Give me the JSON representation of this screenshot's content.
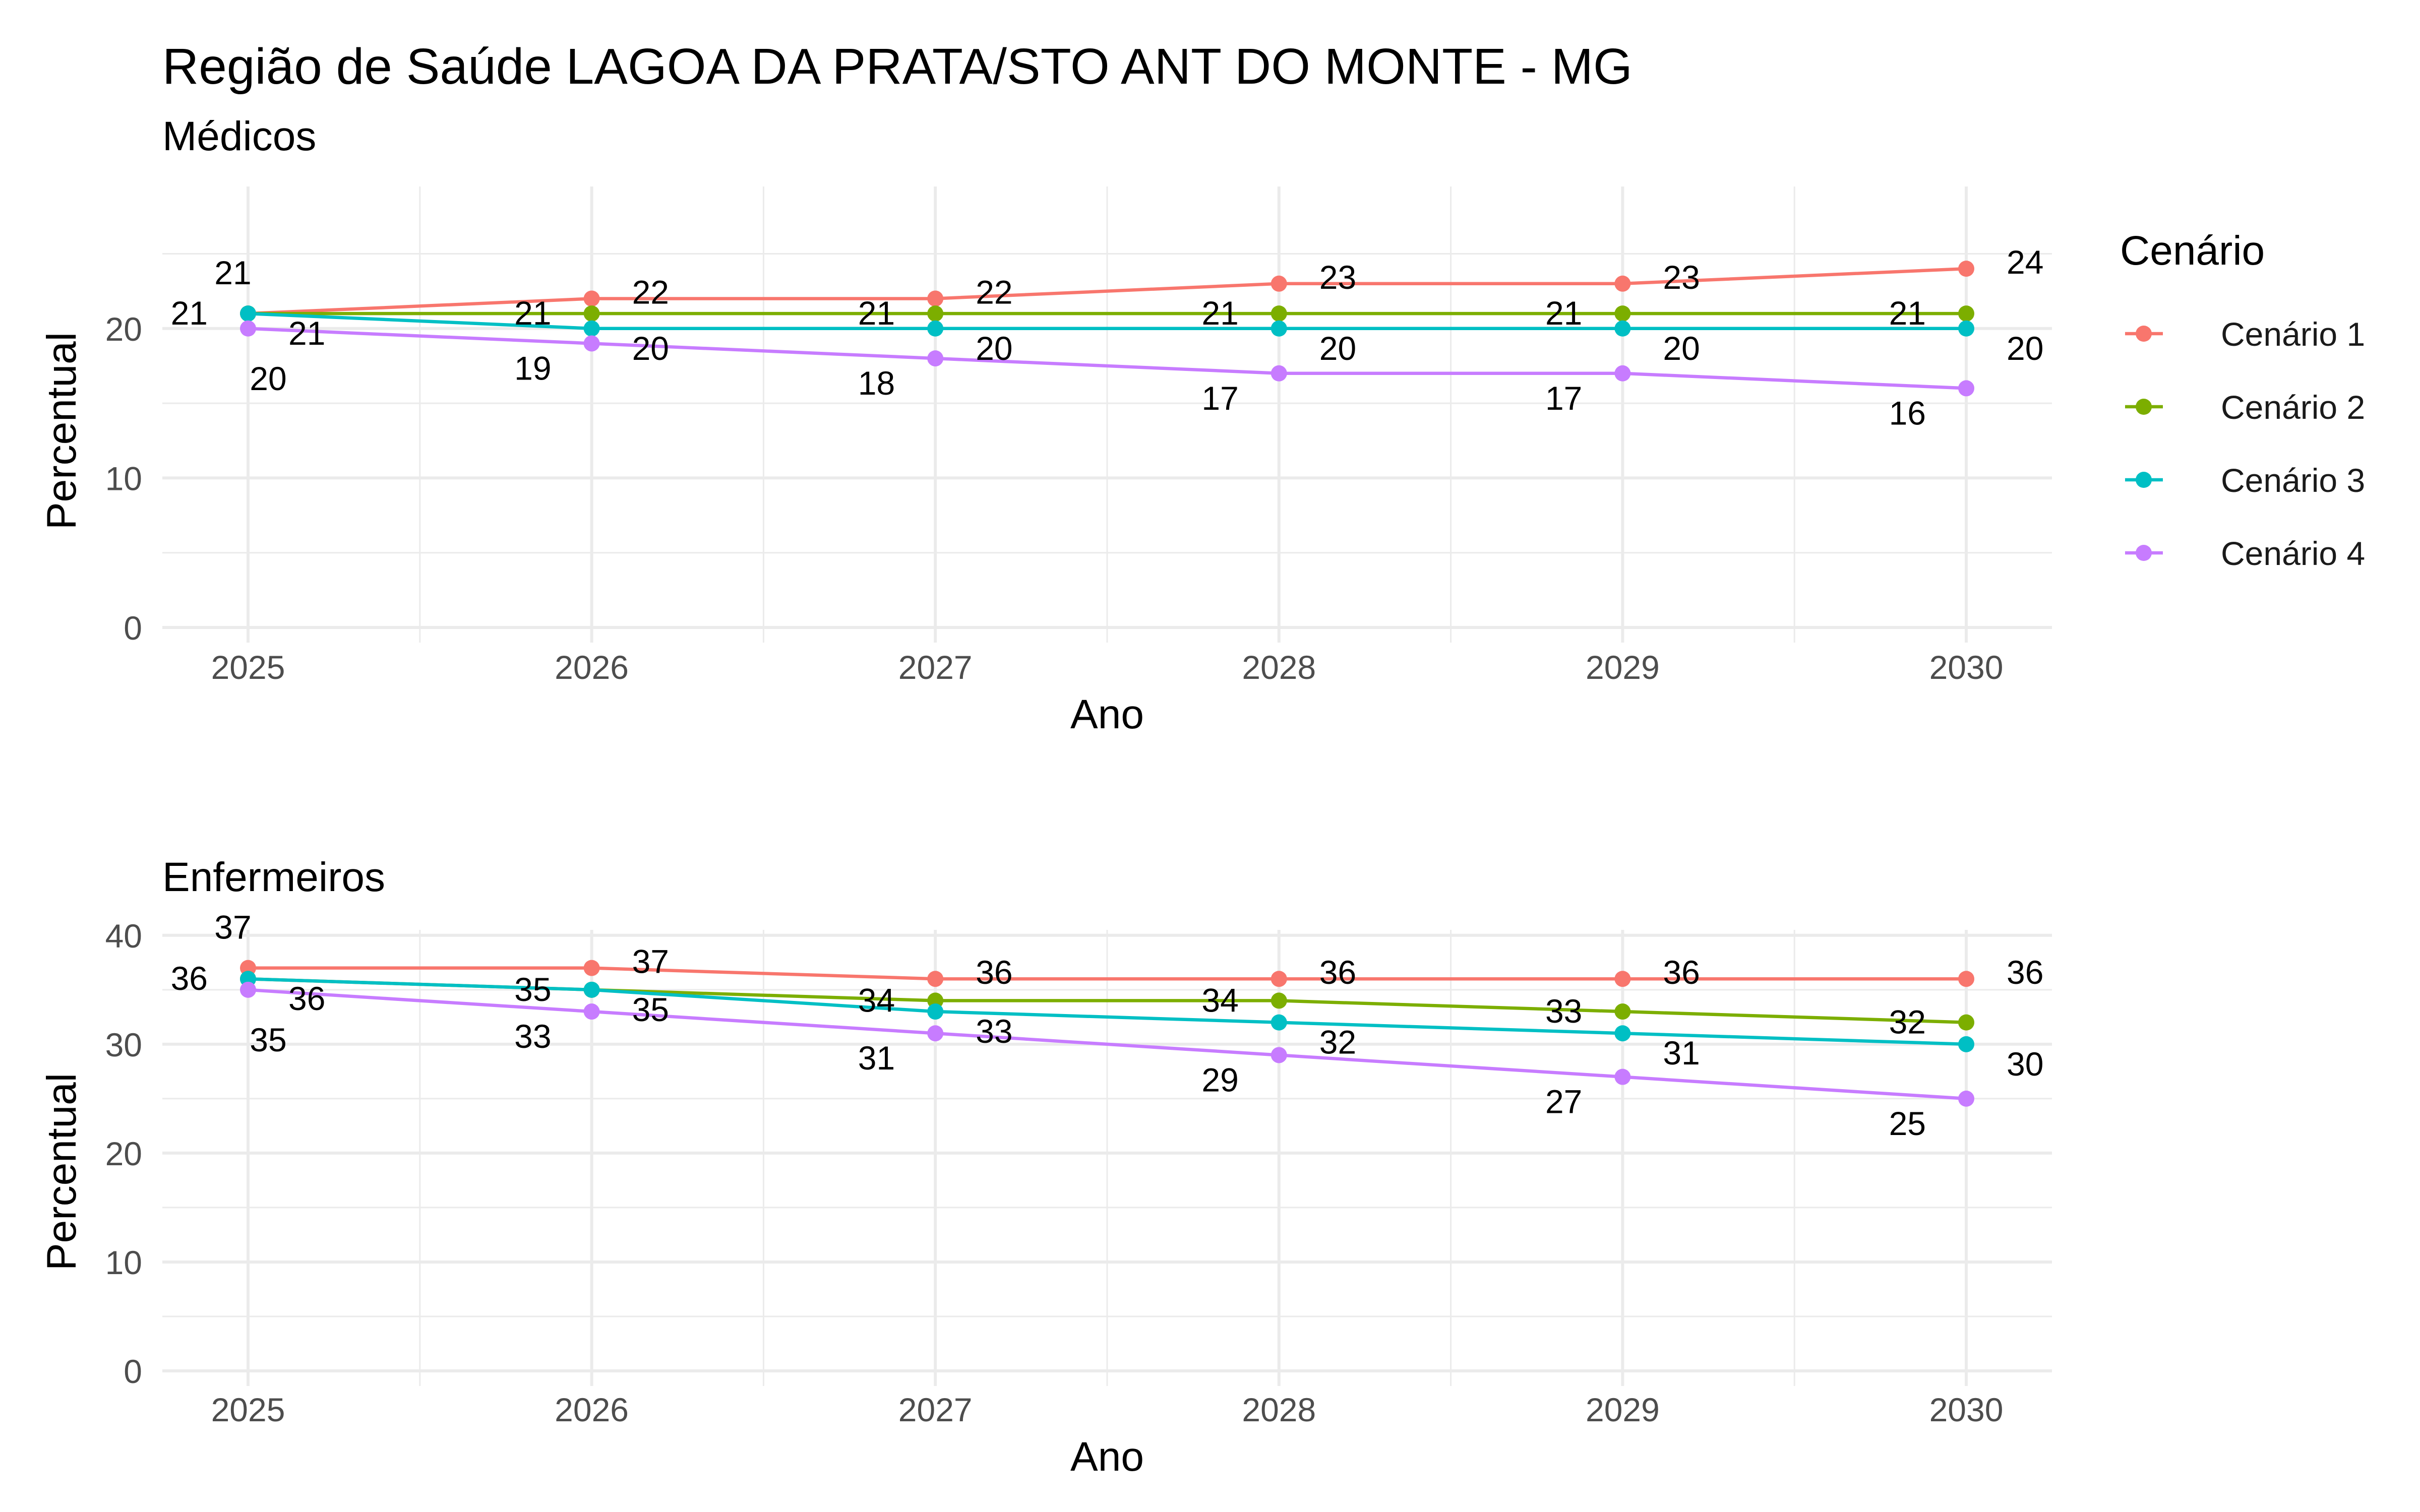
{
  "title": "Região de Saúde LAGOA DA PRATA/STO ANT DO MONTE - MG",
  "legend": {
    "title": "Cenário",
    "position": "right"
  },
  "colors": {
    "Cenário 1": "#F8766D",
    "Cenário 2": "#7CAE00",
    "Cenário 3": "#00BFC4",
    "Cenário 4": "#C77CFF"
  },
  "chart_data": [
    {
      "type": "line",
      "subtitle": "Médicos",
      "xlabel": "Ano",
      "ylabel": "Percentual",
      "x": [
        2025,
        2026,
        2027,
        2028,
        2029,
        2030
      ],
      "ylim": [
        0,
        29.5
      ],
      "yticks": [
        0,
        10,
        20
      ],
      "grid": true,
      "series": [
        {
          "name": "Cenário 1",
          "values": [
            21,
            22,
            22,
            23,
            23,
            24
          ]
        },
        {
          "name": "Cenário 2",
          "values": [
            21,
            21,
            21,
            21,
            21,
            21
          ]
        },
        {
          "name": "Cenário 3",
          "values": [
            21,
            20,
            20,
            20,
            20,
            20
          ]
        },
        {
          "name": "Cenário 4",
          "values": [
            20,
            19,
            18,
            17,
            17,
            16
          ]
        }
      ],
      "labels": [
        {
          "text": "21",
          "x": 2025,
          "y": 21,
          "series": "Cenário 1"
        },
        {
          "text": "21",
          "x": 2025,
          "y": 21,
          "series": "Cenário 2"
        },
        {
          "text": "21",
          "x": 2025,
          "y": 21,
          "series": "Cenário 3"
        },
        {
          "text": "20",
          "x": 2025,
          "y": 20,
          "series": "Cenário 4"
        },
        {
          "text": "22",
          "x": 2026,
          "y": 22,
          "series": "Cenário 1"
        },
        {
          "text": "21",
          "x": 2026,
          "y": 21,
          "series": "Cenário 2"
        },
        {
          "text": "20",
          "x": 2026,
          "y": 20,
          "series": "Cenário 3"
        },
        {
          "text": "19",
          "x": 2026,
          "y": 19,
          "series": "Cenário 4"
        },
        {
          "text": "22",
          "x": 2027,
          "y": 22,
          "series": "Cenário 1"
        },
        {
          "text": "21",
          "x": 2027,
          "y": 21,
          "series": "Cenário 2"
        },
        {
          "text": "20",
          "x": 2027,
          "y": 20,
          "series": "Cenário 3"
        },
        {
          "text": "18",
          "x": 2027,
          "y": 18,
          "series": "Cenário 4"
        },
        {
          "text": "23",
          "x": 2028,
          "y": 23,
          "series": "Cenário 1"
        },
        {
          "text": "21",
          "x": 2028,
          "y": 21,
          "series": "Cenário 2"
        },
        {
          "text": "20",
          "x": 2028,
          "y": 20,
          "series": "Cenário 3"
        },
        {
          "text": "17",
          "x": 2028,
          "y": 17,
          "series": "Cenário 4"
        },
        {
          "text": "23",
          "x": 2029,
          "y": 23,
          "series": "Cenário 1"
        },
        {
          "text": "21",
          "x": 2029,
          "y": 21,
          "series": "Cenário 2"
        },
        {
          "text": "20",
          "x": 2029,
          "y": 20,
          "series": "Cenário 3"
        },
        {
          "text": "17",
          "x": 2029,
          "y": 17,
          "series": "Cenário 4"
        },
        {
          "text": "24",
          "x": 2030,
          "y": 24,
          "series": "Cenário 1"
        },
        {
          "text": "21",
          "x": 2030,
          "y": 21,
          "series": "Cenário 2"
        },
        {
          "text": "20",
          "x": 2030,
          "y": 20,
          "series": "Cenário 3"
        },
        {
          "text": "16",
          "x": 2030,
          "y": 16,
          "series": "Cenário 4"
        }
      ]
    },
    {
      "type": "line",
      "subtitle": "Enfermeiros",
      "xlabel": "Ano",
      "ylabel": "Percentual",
      "x": [
        2025,
        2026,
        2027,
        2028,
        2029,
        2030
      ],
      "ylim": [
        0,
        40.5
      ],
      "yticks": [
        0,
        10,
        20,
        30,
        40
      ],
      "grid": true,
      "series": [
        {
          "name": "Cenário 1",
          "values": [
            37,
            37,
            36,
            36,
            36,
            36
          ]
        },
        {
          "name": "Cenário 2",
          "values": [
            36,
            35,
            34,
            34,
            33,
            32
          ]
        },
        {
          "name": "Cenário 3",
          "values": [
            36,
            35,
            33,
            32,
            31,
            30
          ]
        },
        {
          "name": "Cenário 4",
          "values": [
            35,
            33,
            31,
            29,
            27,
            25
          ]
        }
      ],
      "labels": [
        {
          "text": "37",
          "x": 2025,
          "y": 37,
          "series": "Cenário 1"
        },
        {
          "text": "36",
          "x": 2025,
          "y": 36,
          "series": "Cenário 2"
        },
        {
          "text": "36",
          "x": 2025,
          "y": 36,
          "series": "Cenário 3"
        },
        {
          "text": "35",
          "x": 2025,
          "y": 35,
          "series": "Cenário 4"
        },
        {
          "text": "37",
          "x": 2026,
          "y": 37,
          "series": "Cenário 1"
        },
        {
          "text": "35",
          "x": 2026,
          "y": 35,
          "series": "Cenário 2"
        },
        {
          "text": "35",
          "x": 2026,
          "y": 35,
          "series": "Cenário 3"
        },
        {
          "text": "33",
          "x": 2026,
          "y": 33,
          "series": "Cenário 4"
        },
        {
          "text": "36",
          "x": 2027,
          "y": 36,
          "series": "Cenário 1"
        },
        {
          "text": "34",
          "x": 2027,
          "y": 34,
          "series": "Cenário 2"
        },
        {
          "text": "33",
          "x": 2027,
          "y": 33,
          "series": "Cenário 3"
        },
        {
          "text": "31",
          "x": 2027,
          "y": 31,
          "series": "Cenário 4"
        },
        {
          "text": "36",
          "x": 2028,
          "y": 36,
          "series": "Cenário 1"
        },
        {
          "text": "34",
          "x": 2028,
          "y": 34,
          "series": "Cenário 2"
        },
        {
          "text": "32",
          "x": 2028,
          "y": 32,
          "series": "Cenário 3"
        },
        {
          "text": "29",
          "x": 2028,
          "y": 29,
          "series": "Cenário 4"
        },
        {
          "text": "36",
          "x": 2029,
          "y": 36,
          "series": "Cenário 1"
        },
        {
          "text": "33",
          "x": 2029,
          "y": 33,
          "series": "Cenário 2"
        },
        {
          "text": "31",
          "x": 2029,
          "y": 31,
          "series": "Cenário 3"
        },
        {
          "text": "27",
          "x": 2029,
          "y": 27,
          "series": "Cenário 4"
        },
        {
          "text": "36",
          "x": 2030,
          "y": 36,
          "series": "Cenário 1"
        },
        {
          "text": "32",
          "x": 2030,
          "y": 32,
          "series": "Cenário 2"
        },
        {
          "text": "30",
          "x": 2030,
          "y": 30,
          "series": "Cenário 3"
        },
        {
          "text": "25",
          "x": 2030,
          "y": 25,
          "series": "Cenário 4"
        }
      ]
    }
  ]
}
